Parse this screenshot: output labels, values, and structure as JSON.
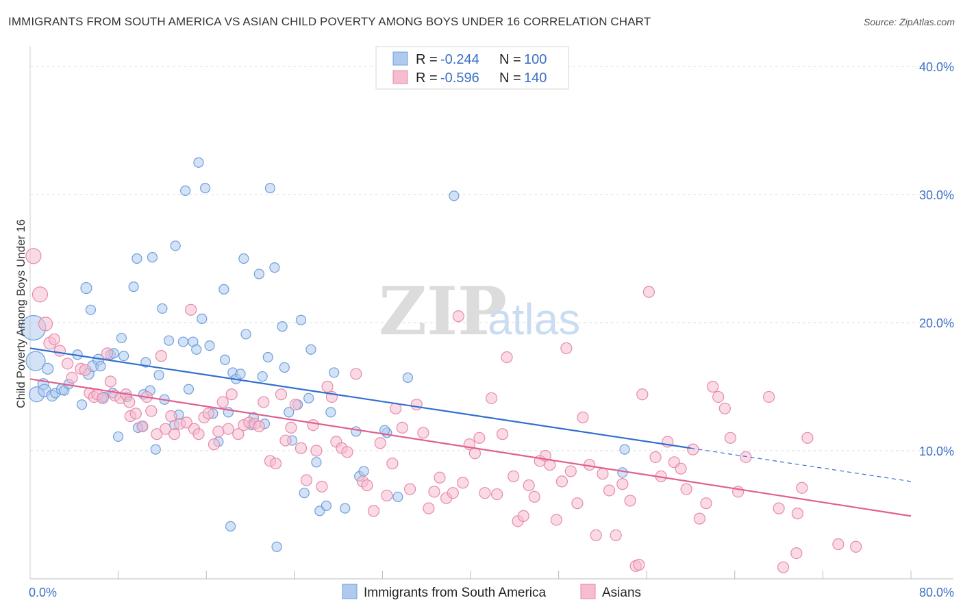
{
  "title": "IMMIGRANTS FROM SOUTH AMERICA VS ASIAN CHILD POVERTY AMONG BOYS UNDER 16 CORRELATION CHART",
  "source": "Source: ZipAtlas.com",
  "watermark": {
    "zip": "ZIP",
    "atlas": "atlas"
  },
  "chart_data": {
    "type": "scatter",
    "xlabel": "",
    "ylabel": "Child Poverty Among Boys Under 16",
    "xlim": [
      0,
      80
    ],
    "ylim": [
      0,
      40
    ],
    "x_tick_labels": [
      {
        "value": 0,
        "label": "0.0%"
      },
      {
        "value": 80,
        "label": "80.0%"
      }
    ],
    "x_minor_ticks": [
      8,
      16,
      24,
      32,
      40,
      48,
      56,
      64,
      72,
      80
    ],
    "y_tick_labels": [
      {
        "value": 10,
        "label": "10.0%"
      },
      {
        "value": 20,
        "label": "20.0%"
      },
      {
        "value": 30,
        "label": "30.0%"
      },
      {
        "value": 40,
        "label": "40.0%"
      }
    ],
    "legend_box": [
      {
        "series": "Immigrants from South America",
        "r_label": "R =",
        "r_value": "-0.244",
        "n_label": "N =",
        "n_value": "100"
      },
      {
        "series": "Asians",
        "r_label": "R =",
        "r_value": "-0.596",
        "n_label": "N =",
        "n_value": "140"
      }
    ],
    "series": [
      {
        "name": "Immigrants from South America",
        "fill": "#aecbee",
        "stroke": "#6e9fdc",
        "line_color": "#2f6fd0",
        "trend": {
          "x0": 0,
          "y0": 18.0,
          "x1": 60,
          "y1": 10.2,
          "dash_x1": 80,
          "dash_y1": 7.6
        },
        "points": [
          [
            0.3,
            19.6,
            18
          ],
          [
            0.5,
            17.0,
            14
          ],
          [
            0.6,
            14.4,
            11
          ],
          [
            1.2,
            15.2,
            8
          ],
          [
            1.3,
            14.7,
            9
          ],
          [
            1.6,
            16.4,
            8
          ],
          [
            2.0,
            14.3,
            8
          ],
          [
            2.3,
            14.5,
            7
          ],
          [
            2.9,
            14.8,
            8
          ],
          [
            3.1,
            14.7,
            7
          ],
          [
            3.5,
            15.2,
            7
          ],
          [
            4.3,
            17.5,
            7
          ],
          [
            4.7,
            13.6,
            7
          ],
          [
            5.1,
            22.7,
            8
          ],
          [
            5.3,
            16.0,
            8
          ],
          [
            5.5,
            21.0,
            7
          ],
          [
            5.7,
            16.6,
            8
          ],
          [
            6.2,
            17.1,
            8
          ],
          [
            6.4,
            16.6,
            7
          ],
          [
            6.5,
            14.1,
            7
          ],
          [
            6.7,
            14.2,
            7
          ],
          [
            7.3,
            17.5,
            7
          ],
          [
            7.5,
            14.5,
            7
          ],
          [
            7.6,
            17.6,
            7
          ],
          [
            8.0,
            11.1,
            7
          ],
          [
            8.3,
            18.8,
            7
          ],
          [
            8.5,
            17.4,
            7
          ],
          [
            8.8,
            14.2,
            7
          ],
          [
            9.4,
            22.8,
            7
          ],
          [
            9.7,
            25.0,
            7
          ],
          [
            10.2,
            11.9,
            7
          ],
          [
            10.3,
            14.4,
            7
          ],
          [
            10.5,
            16.9,
            7
          ],
          [
            10.9,
            14.7,
            7
          ],
          [
            11.1,
            25.1,
            7
          ],
          [
            11.4,
            10.1,
            7
          ],
          [
            11.7,
            15.9,
            7
          ],
          [
            12.0,
            21.1,
            7
          ],
          [
            12.2,
            14.0,
            7
          ],
          [
            12.6,
            18.6,
            7
          ],
          [
            13.1,
            12.0,
            7
          ],
          [
            13.2,
            26.0,
            7
          ],
          [
            13.5,
            12.8,
            7
          ],
          [
            13.9,
            18.5,
            7
          ],
          [
            14.1,
            30.3,
            7
          ],
          [
            14.4,
            14.8,
            7
          ],
          [
            14.8,
            18.5,
            7
          ],
          [
            15.1,
            17.9,
            7
          ],
          [
            15.3,
            32.5,
            7
          ],
          [
            15.6,
            20.3,
            7
          ],
          [
            15.9,
            30.5,
            7
          ],
          [
            16.3,
            18.2,
            7
          ],
          [
            16.6,
            12.9,
            7
          ],
          [
            17.1,
            10.7,
            7
          ],
          [
            17.6,
            22.6,
            7
          ],
          [
            17.7,
            17.1,
            7
          ],
          [
            18.0,
            13.0,
            7
          ],
          [
            18.4,
            16.1,
            7
          ],
          [
            18.7,
            15.6,
            7
          ],
          [
            19.1,
            16.0,
            7
          ],
          [
            19.4,
            25.0,
            7
          ],
          [
            19.6,
            19.1,
            7
          ],
          [
            20.1,
            12.0,
            7
          ],
          [
            20.3,
            12.6,
            7
          ],
          [
            20.8,
            23.8,
            7
          ],
          [
            21.1,
            15.8,
            7
          ],
          [
            21.3,
            12.1,
            7
          ],
          [
            21.6,
            17.3,
            7
          ],
          [
            21.8,
            30.5,
            7
          ],
          [
            22.2,
            24.3,
            7
          ],
          [
            22.4,
            2.5,
            7
          ],
          [
            22.9,
            19.7,
            7
          ],
          [
            23.1,
            16.5,
            7
          ],
          [
            23.5,
            13.0,
            7
          ],
          [
            23.8,
            10.8,
            7
          ],
          [
            24.3,
            13.6,
            7
          ],
          [
            24.6,
            20.2,
            7
          ],
          [
            24.9,
            6.7,
            7
          ],
          [
            25.3,
            14.1,
            7
          ],
          [
            25.5,
            17.9,
            7
          ],
          [
            26.0,
            9.1,
            7
          ],
          [
            26.3,
            5.3,
            7
          ],
          [
            26.9,
            5.7,
            7
          ],
          [
            27.3,
            13.0,
            7
          ],
          [
            27.6,
            16.1,
            7
          ],
          [
            28.6,
            5.5,
            7
          ],
          [
            29.6,
            11.5,
            7
          ],
          [
            29.9,
            8.0,
            7
          ],
          [
            30.3,
            8.4,
            7
          ],
          [
            32.4,
            11.4,
            7
          ],
          [
            32.2,
            11.6,
            7
          ],
          [
            33.4,
            6.4,
            7
          ],
          [
            34.3,
            15.7,
            7
          ],
          [
            38.5,
            29.9,
            7
          ],
          [
            54.0,
            10.1,
            7
          ],
          [
            53.8,
            8.3,
            7
          ],
          [
            18.2,
            4.1,
            7
          ],
          [
            9.8,
            11.8,
            7
          ]
        ]
      },
      {
        "name": "Asians",
        "fill": "#f6bccf",
        "stroke": "#e889aa",
        "line_color": "#e0608e",
        "trend": {
          "x0": 0,
          "y0": 15.6,
          "x1": 80,
          "y1": 4.9
        },
        "points": [
          [
            0.3,
            25.2,
            11
          ],
          [
            0.9,
            22.2,
            11
          ],
          [
            1.4,
            19.9,
            10
          ],
          [
            1.8,
            18.4,
            9
          ],
          [
            2.2,
            18.7,
            8
          ],
          [
            2.7,
            17.8,
            8
          ],
          [
            3.4,
            16.8,
            8
          ],
          [
            3.8,
            15.7,
            8
          ],
          [
            4.6,
            16.4,
            8
          ],
          [
            5.0,
            16.3,
            8
          ],
          [
            5.4,
            14.5,
            8
          ],
          [
            5.8,
            14.2,
            8
          ],
          [
            6.1,
            14.4,
            8
          ],
          [
            6.6,
            14.1,
            8
          ],
          [
            7.0,
            17.6,
            8
          ],
          [
            7.3,
            15.4,
            8
          ],
          [
            7.7,
            14.3,
            8
          ],
          [
            8.2,
            14.1,
            8
          ],
          [
            8.7,
            14.4,
            8
          ],
          [
            9.0,
            13.8,
            8
          ],
          [
            9.1,
            12.7,
            8
          ],
          [
            9.6,
            12.9,
            8
          ],
          [
            10.2,
            11.9,
            8
          ],
          [
            10.6,
            14.2,
            8
          ],
          [
            11.0,
            13.1,
            8
          ],
          [
            11.5,
            11.3,
            8
          ],
          [
            11.9,
            17.4,
            8
          ],
          [
            12.3,
            11.7,
            8
          ],
          [
            12.8,
            12.7,
            8
          ],
          [
            13.1,
            11.3,
            8
          ],
          [
            13.6,
            12.1,
            8
          ],
          [
            14.2,
            12.2,
            8
          ],
          [
            14.6,
            21.0,
            8
          ],
          [
            14.9,
            11.7,
            8
          ],
          [
            15.3,
            11.3,
            8
          ],
          [
            15.8,
            12.6,
            8
          ],
          [
            16.2,
            12.9,
            8
          ],
          [
            16.7,
            10.5,
            8
          ],
          [
            17.1,
            11.5,
            8
          ],
          [
            17.5,
            13.8,
            8
          ],
          [
            18.0,
            11.7,
            8
          ],
          [
            18.3,
            14.4,
            8
          ],
          [
            18.9,
            11.3,
            8
          ],
          [
            19.4,
            12.0,
            8
          ],
          [
            19.9,
            12.2,
            8
          ],
          [
            20.4,
            12.1,
            8
          ],
          [
            20.8,
            11.9,
            8
          ],
          [
            21.2,
            13.8,
            8
          ],
          [
            21.8,
            9.2,
            8
          ],
          [
            22.3,
            9.0,
            8
          ],
          [
            22.8,
            14.4,
            8
          ],
          [
            23.2,
            10.8,
            8
          ],
          [
            23.7,
            11.8,
            8
          ],
          [
            24.1,
            13.6,
            8
          ],
          [
            24.6,
            10.2,
            8
          ],
          [
            25.1,
            7.7,
            8
          ],
          [
            25.7,
            12.0,
            8
          ],
          [
            26.0,
            10.0,
            8
          ],
          [
            26.5,
            7.2,
            8
          ],
          [
            27.0,
            15.0,
            8
          ],
          [
            27.4,
            14.2,
            8
          ],
          [
            27.8,
            10.7,
            8
          ],
          [
            28.3,
            10.2,
            8
          ],
          [
            28.8,
            9.9,
            8
          ],
          [
            29.6,
            16.0,
            8
          ],
          [
            30.2,
            7.6,
            8
          ],
          [
            30.6,
            7.3,
            8
          ],
          [
            31.2,
            5.3,
            8
          ],
          [
            31.8,
            10.6,
            8
          ],
          [
            32.4,
            6.5,
            8
          ],
          [
            32.9,
            9.0,
            8
          ],
          [
            33.2,
            13.3,
            8
          ],
          [
            33.8,
            11.8,
            8
          ],
          [
            34.5,
            7.0,
            8
          ],
          [
            35.1,
            13.6,
            8
          ],
          [
            35.7,
            11.4,
            8
          ],
          [
            36.2,
            5.5,
            8
          ],
          [
            36.7,
            6.8,
            8
          ],
          [
            37.2,
            7.9,
            8
          ],
          [
            37.8,
            6.3,
            8
          ],
          [
            38.4,
            6.7,
            8
          ],
          [
            38.9,
            20.5,
            8
          ],
          [
            39.3,
            7.5,
            8
          ],
          [
            39.9,
            10.5,
            8
          ],
          [
            40.4,
            9.8,
            8
          ],
          [
            40.8,
            11.0,
            8
          ],
          [
            41.3,
            6.7,
            8
          ],
          [
            41.9,
            14.1,
            8
          ],
          [
            42.4,
            6.6,
            8
          ],
          [
            42.9,
            11.3,
            8
          ],
          [
            43.3,
            17.3,
            8
          ],
          [
            43.9,
            8.0,
            8
          ],
          [
            44.3,
            4.5,
            8
          ],
          [
            44.8,
            4.9,
            8
          ],
          [
            45.3,
            7.3,
            8
          ],
          [
            45.8,
            6.4,
            8
          ],
          [
            46.3,
            9.2,
            8
          ],
          [
            46.8,
            9.6,
            8
          ],
          [
            47.2,
            8.9,
            8
          ],
          [
            47.8,
            4.6,
            8
          ],
          [
            48.3,
            7.6,
            8
          ],
          [
            48.7,
            18.0,
            8
          ],
          [
            49.1,
            8.4,
            8
          ],
          [
            49.7,
            5.9,
            8
          ],
          [
            50.2,
            12.6,
            8
          ],
          [
            50.8,
            8.9,
            8
          ],
          [
            51.4,
            3.4,
            8
          ],
          [
            52.0,
            8.2,
            8
          ],
          [
            52.6,
            6.9,
            8
          ],
          [
            53.2,
            3.4,
            8
          ],
          [
            53.8,
            7.4,
            8
          ],
          [
            54.5,
            6.1,
            8
          ],
          [
            55.0,
            1.0,
            8
          ],
          [
            55.6,
            14.4,
            8
          ],
          [
            56.2,
            22.4,
            8
          ],
          [
            56.8,
            9.5,
            8
          ],
          [
            57.3,
            8.0,
            8
          ],
          [
            57.9,
            10.7,
            8
          ],
          [
            58.5,
            9.1,
            8
          ],
          [
            59.1,
            8.6,
            8
          ],
          [
            59.6,
            7.0,
            8
          ],
          [
            60.2,
            10.1,
            8
          ],
          [
            60.8,
            4.7,
            8
          ],
          [
            61.4,
            5.9,
            8
          ],
          [
            62.0,
            15.0,
            8
          ],
          [
            62.5,
            14.2,
            8
          ],
          [
            63.1,
            13.3,
            8
          ],
          [
            63.6,
            11.0,
            8
          ],
          [
            64.3,
            6.8,
            8
          ],
          [
            65.0,
            9.5,
            8
          ],
          [
            67.1,
            14.2,
            8
          ],
          [
            68.0,
            5.5,
            8
          ],
          [
            69.7,
            5.1,
            8
          ],
          [
            70.1,
            7.1,
            8
          ],
          [
            70.6,
            11.0,
            8
          ],
          [
            73.4,
            2.7,
            8
          ],
          [
            75.0,
            2.5,
            8
          ],
          [
            68.4,
            0.9,
            8
          ],
          [
            55.3,
            1.1,
            8
          ],
          [
            69.6,
            2.0,
            8
          ]
        ]
      }
    ]
  }
}
